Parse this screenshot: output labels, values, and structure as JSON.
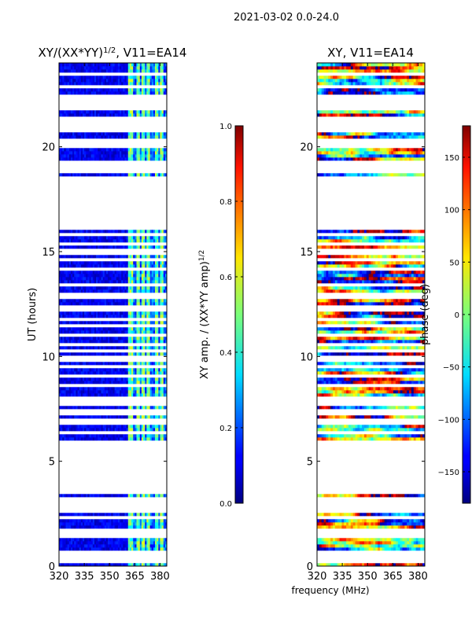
{
  "suptitle": "2021-03-02 0.0-24.0",
  "xlabel_shared": "frequency (MHz)",
  "chart_data": [
    {
      "type": "heatmap",
      "title_main": "XY/(XX*YY)",
      "title_exp": "1/2",
      "title_tail": ", V11=EA14",
      "xlabel": "frequency (MHz)",
      "ylabel": "UT (hours)",
      "xlim": [
        320,
        384
      ],
      "ylim": [
        0,
        24
      ],
      "xticks": [
        320,
        335,
        350,
        365,
        380
      ],
      "yticks": [
        0,
        5,
        10,
        15,
        20
      ],
      "colorbar": {
        "label_main": "XY amp. / (XX*YY amp)",
        "label_exp": "1/2",
        "range": [
          0.0,
          1.0
        ],
        "ticks": [
          0.0,
          0.2,
          0.4,
          0.6,
          0.8,
          1.0
        ],
        "tick_labels": [
          "0.0",
          "0.2",
          "0.4",
          "0.6",
          "0.8",
          "1.0"
        ],
        "colormap": "jet"
      }
    },
    {
      "type": "heatmap",
      "title": "XY, V11=EA14",
      "xlabel": "frequency (MHz)",
      "ylabel": "",
      "xlim": [
        320,
        384
      ],
      "ylim": [
        0,
        24
      ],
      "xticks": [
        320,
        335,
        350,
        365,
        380
      ],
      "yticks": [
        0,
        5,
        10,
        15,
        20
      ],
      "colorbar": {
        "label": "phase (deg)",
        "range": [
          -180,
          180
        ],
        "ticks": [
          -150,
          -100,
          -50,
          0,
          50,
          100,
          150
        ],
        "tick_labels": [
          "−150",
          "−100",
          "−50",
          "0",
          "50",
          "100",
          "150"
        ],
        "colormap": "jet"
      }
    }
  ],
  "flagged_time_rows_hours": [
    0.3,
    0.6,
    1.5,
    1.7,
    2.3,
    2.7,
    3.0,
    3.25,
    3.5,
    3.75,
    3.9,
    4.05,
    4.2,
    4.35,
    4.5,
    4.65,
    4.8,
    4.95,
    5.1,
    5.25,
    5.45,
    5.65,
    5.85,
    6.4,
    6.9,
    7.35,
    7.8,
    8.05,
    8.6,
    9.1,
    9.5,
    9.9,
    10.3,
    10.6,
    11.0,
    11.5,
    11.8,
    12.3,
    12.8,
    13.0,
    13.4,
    14.2,
    14.6,
    15.0,
    15.4,
    15.8,
    16.2,
    16.5,
    16.8,
    17.0,
    17.25,
    17.5,
    17.7,
    17.95,
    18.1,
    18.3,
    18.5,
    18.8,
    19.0,
    19.1,
    19.3,
    20.1,
    20.3,
    20.85,
    21.1,
    21.3,
    21.9,
    22.1,
    22.35,
    22.85,
    23.5
  ],
  "bright_freq_bands_mhz": [
    [
      361,
      364
    ],
    [
      366,
      368
    ],
    [
      369.5,
      371
    ],
    [
      372.5,
      374
    ],
    [
      377,
      378.5
    ],
    [
      380,
      381.5
    ]
  ]
}
